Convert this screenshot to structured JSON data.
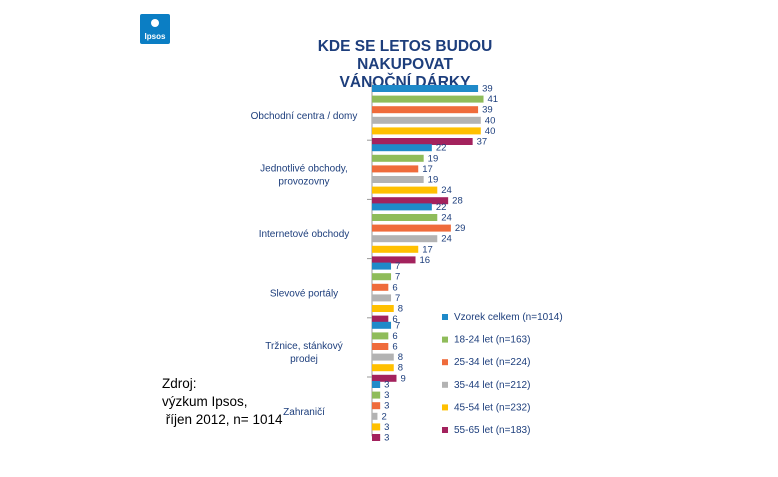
{
  "logo": {
    "text": "Ipsos"
  },
  "title_lines": [
    "KDE SE LETOS BUDOU NAKUPOVAT",
    "VÁNOČNÍ DÁRKY"
  ],
  "source_lines": [
    "Zdroj:",
    "výzkum Ipsos,",
    " říjen 2012, n= 1014"
  ],
  "chart_data": {
    "type": "bar",
    "orientation": "horizontal",
    "title": "KDE SE LETOS BUDOU NAKUPOVAT VÁNOČNÍ DÁRKY",
    "categories": [
      [
        "Obchodní centra / domy"
      ],
      [
        "Jednotlivé obchody,",
        "provozovny"
      ],
      [
        "Internetové obchody"
      ],
      [
        "Slevové portály"
      ],
      [
        "Tržnice, stánkový",
        "prodej"
      ],
      [
        "Zahraničí"
      ]
    ],
    "series": [
      {
        "name": "Vzorek celkem (n=1014)",
        "color": "#1f8ac9",
        "values": [
          39,
          22,
          22,
          7,
          7,
          3
        ]
      },
      {
        "name": "18-24 let (n=163)",
        "color": "#8fbc5a",
        "values": [
          41,
          19,
          24,
          7,
          6,
          3
        ]
      },
      {
        "name": "25-34 let (n=224)",
        "color": "#ef6b3b",
        "values": [
          39,
          17,
          29,
          6,
          6,
          3
        ]
      },
      {
        "name": "35-44 let (n=212)",
        "color": "#b3b3b3",
        "values": [
          40,
          19,
          24,
          7,
          8,
          2
        ]
      },
      {
        "name": "45-54 let (n=232)",
        "color": "#ffc000",
        "values": [
          40,
          24,
          17,
          8,
          8,
          3
        ]
      },
      {
        "name": "55-65 let (n=183)",
        "color": "#a3225d",
        "values": [
          37,
          28,
          16,
          6,
          9,
          3
        ]
      }
    ],
    "xlim": [
      0,
      45
    ],
    "grid": false,
    "legend_position": "right"
  }
}
